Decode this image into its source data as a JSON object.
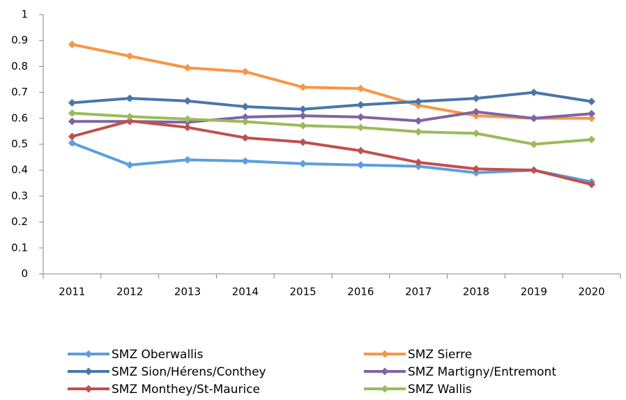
{
  "chart_data": {
    "type": "line",
    "categories": [
      "2011",
      "2012",
      "2013",
      "2014",
      "2015",
      "2016",
      "2017",
      "2018",
      "2019",
      "2020"
    ],
    "series": [
      {
        "name": "SMZ Oberwallis",
        "color": "#5a9fe0",
        "values": [
          0.505,
          0.42,
          0.44,
          0.435,
          0.425,
          0.42,
          0.415,
          0.39,
          0.4,
          0.355
        ]
      },
      {
        "name": "SMZ Sierre",
        "color": "#f79646",
        "values": [
          0.885,
          0.84,
          0.795,
          0.78,
          0.72,
          0.715,
          0.65,
          0.61,
          0.6,
          0.6
        ]
      },
      {
        "name": "SMZ Sion/Hérens/Conthey",
        "color": "#4a76aa",
        "values": [
          0.66,
          0.677,
          0.667,
          0.645,
          0.635,
          0.652,
          0.665,
          0.677,
          0.7,
          0.665
        ]
      },
      {
        "name": "SMZ Martigny/Entremont",
        "color": "#8064a2",
        "values": [
          0.588,
          0.588,
          0.585,
          0.605,
          0.61,
          0.605,
          0.59,
          0.625,
          0.6,
          0.618
        ]
      },
      {
        "name": "SMZ Monthey/St-Maurice",
        "color": "#c0504d",
        "values": [
          0.53,
          0.59,
          0.565,
          0.525,
          0.508,
          0.475,
          0.43,
          0.405,
          0.4,
          0.345
        ]
      },
      {
        "name": "SMZ Wallis",
        "color": "#9bbb59",
        "values": [
          0.62,
          0.607,
          0.597,
          0.587,
          0.572,
          0.565,
          0.548,
          0.542,
          0.5,
          0.518
        ]
      }
    ],
    "ylim": [
      0,
      1
    ],
    "yticks": [
      0,
      0.1,
      0.2,
      0.3,
      0.4,
      0.5,
      0.6,
      0.7,
      0.8,
      0.9,
      1
    ],
    "grid": false,
    "legend": "bottom"
  }
}
